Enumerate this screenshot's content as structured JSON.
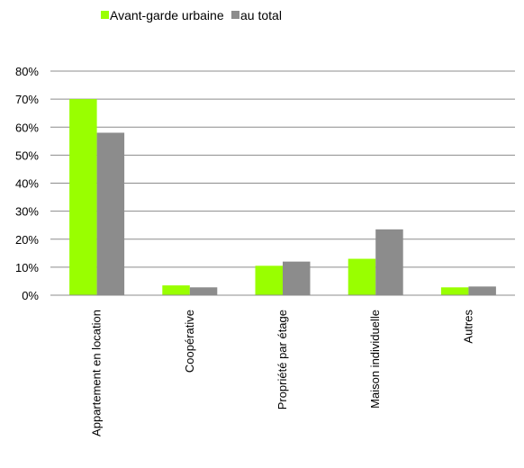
{
  "chart_data": {
    "type": "bar",
    "categories": [
      "Appartement en location",
      "Coopérative",
      "Propriété par étage",
      "Maison individuelle",
      "Autres"
    ],
    "series": [
      {
        "name": "Avant-garde urbaine",
        "color": "#99FF00",
        "values": [
          70,
          3.5,
          10.5,
          13,
          2.8
        ]
      },
      {
        "name": "au total",
        "color": "#8C8C8C",
        "values": [
          58,
          2.8,
          12,
          23.5,
          3.1
        ]
      }
    ],
    "ylim": [
      0,
      80
    ],
    "yticks": [
      0,
      10,
      20,
      30,
      40,
      50,
      60,
      70,
      80
    ],
    "ytick_labels": [
      "0%",
      "10%",
      "20%",
      "30%",
      "40%",
      "50%",
      "60%",
      "70%",
      "80%"
    ],
    "grid": true,
    "legend": "top-left"
  }
}
